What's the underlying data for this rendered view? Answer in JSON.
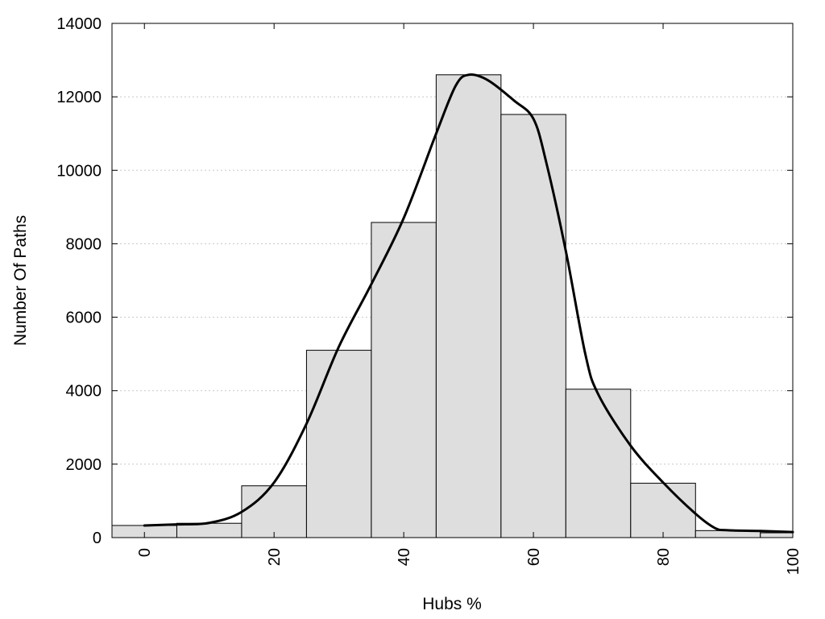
{
  "chart_data": {
    "type": "bar",
    "xlabel": "Hubs %",
    "ylabel": "Number Of Paths",
    "xlim": [
      -5,
      100
    ],
    "ylim": [
      0,
      14000
    ],
    "x_ticks": [
      0,
      20,
      40,
      60,
      80,
      100
    ],
    "y_ticks": [
      0,
      2000,
      4000,
      6000,
      8000,
      10000,
      12000,
      14000
    ],
    "grid": "horizontal dotted",
    "bin_width": 10,
    "bins": [
      {
        "center": 0,
        "value": 330
      },
      {
        "center": 10,
        "value": 390
      },
      {
        "center": 20,
        "value": 1410
      },
      {
        "center": 30,
        "value": 5100
      },
      {
        "center": 40,
        "value": 8580
      },
      {
        "center": 50,
        "value": 12600
      },
      {
        "center": 60,
        "value": 11520
      },
      {
        "center": 70,
        "value": 4040
      },
      {
        "center": 80,
        "value": 1480
      },
      {
        "center": 90,
        "value": 190
      },
      {
        "center": 100,
        "value": 130
      }
    ],
    "curve": {
      "x": [
        0,
        5,
        10,
        15,
        20,
        25,
        30,
        35,
        40,
        45,
        48,
        50,
        53,
        57,
        60,
        62,
        65,
        68,
        70,
        75,
        80,
        85,
        88,
        90,
        95,
        100
      ],
      "y": [
        330,
        360,
        400,
        700,
        1500,
        3100,
        5200,
        6900,
        8700,
        11000,
        12300,
        12600,
        12450,
        11900,
        11400,
        10200,
        7800,
        5000,
        3900,
        2500,
        1500,
        650,
        260,
        200,
        180,
        150
      ]
    },
    "bar_color": "#dedede",
    "line_color": "#000000"
  }
}
